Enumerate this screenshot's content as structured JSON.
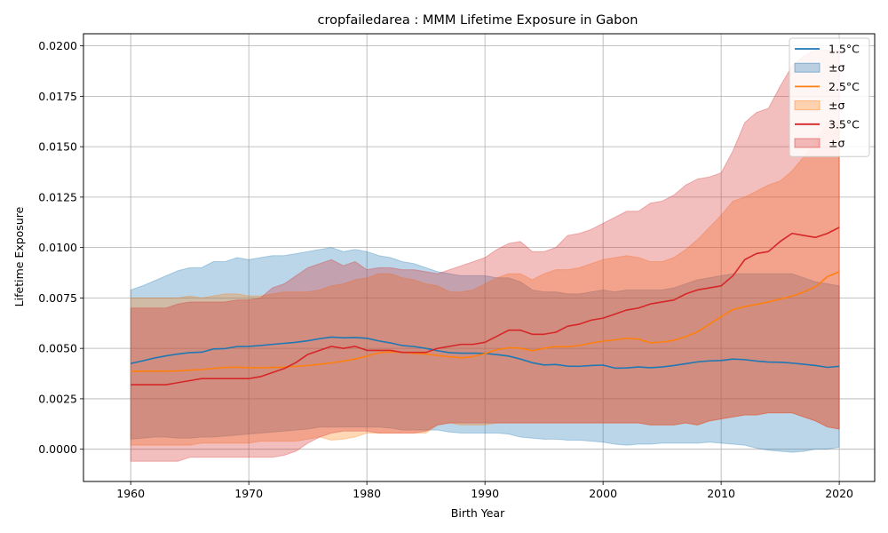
{
  "chart_data": {
    "type": "line",
    "title": "cropfailedarea : MMM Lifetime Exposure in Gabon",
    "xlabel": "Birth Year",
    "ylabel": "Lifetime Exposure",
    "xlim": [
      1956,
      2023
    ],
    "ylim": [
      -0.0016,
      0.0206
    ],
    "x_ticks": [
      1960,
      1970,
      1980,
      1990,
      2000,
      2010,
      2020
    ],
    "x_tick_labels": [
      "1960",
      "1970",
      "1980",
      "1990",
      "2000",
      "2010",
      "2020"
    ],
    "y_ticks": [
      0.0,
      0.0025,
      0.005,
      0.0075,
      0.01,
      0.0125,
      0.015,
      0.0175,
      0.02
    ],
    "y_tick_labels": [
      "0.0000",
      "0.0025",
      "0.0050",
      "0.0075",
      "0.0100",
      "0.0125",
      "0.0150",
      "0.0175",
      "0.0200"
    ],
    "grid": true,
    "legend_position": "top-right",
    "legend_entries": [
      {
        "label": "1.5°C",
        "kind": "line",
        "series": 0
      },
      {
        "label": "±σ",
        "kind": "band",
        "series": 0
      },
      {
        "label": "2.5°C",
        "kind": "line",
        "series": 1
      },
      {
        "label": "±σ",
        "kind": "band",
        "series": 1
      },
      {
        "label": "3.5°C",
        "kind": "line",
        "series": 2
      },
      {
        "label": "±σ",
        "kind": "band",
        "series": 2
      }
    ],
    "x": [
      1960,
      1961,
      1962,
      1963,
      1964,
      1965,
      1966,
      1967,
      1968,
      1969,
      1970,
      1971,
      1972,
      1973,
      1974,
      1975,
      1976,
      1977,
      1978,
      1979,
      1980,
      1981,
      1982,
      1983,
      1984,
      1985,
      1986,
      1987,
      1988,
      1989,
      1990,
      1991,
      1992,
      1993,
      1994,
      1995,
      1996,
      1997,
      1998,
      1999,
      2000,
      2001,
      2002,
      2003,
      2004,
      2005,
      2006,
      2007,
      2008,
      2009,
      2010,
      2011,
      2012,
      2013,
      2014,
      2015,
      2016,
      2017,
      2018,
      2019,
      2020
    ],
    "series": [
      {
        "name": "1.5°C",
        "color": "#1f77b4",
        "values": [
          0.00425,
          0.00438,
          0.00452,
          0.00463,
          0.00472,
          0.00479,
          0.00481,
          0.00497,
          0.00499,
          0.00509,
          0.0051,
          0.00514,
          0.0052,
          0.00525,
          0.0053,
          0.00538,
          0.00548,
          0.00556,
          0.00552,
          0.00554,
          0.0055,
          0.00537,
          0.00527,
          0.00514,
          0.00509,
          0.005,
          0.00488,
          0.00479,
          0.00476,
          0.00476,
          0.00475,
          0.00469,
          0.00462,
          0.00447,
          0.00429,
          0.00418,
          0.0042,
          0.00412,
          0.00411,
          0.00415,
          0.00417,
          0.00402,
          0.00403,
          0.00408,
          0.00404,
          0.00408,
          0.00415,
          0.00424,
          0.00433,
          0.00438,
          0.0044,
          0.00447,
          0.00444,
          0.00437,
          0.00432,
          0.00431,
          0.00427,
          0.00421,
          0.00415,
          0.00406,
          0.00411
        ],
        "upper": [
          0.0079,
          0.0081,
          0.00835,
          0.0086,
          0.00885,
          0.009,
          0.009,
          0.0093,
          0.0093,
          0.0095,
          0.0094,
          0.0095,
          0.0096,
          0.0096,
          0.0097,
          0.0098,
          0.0099,
          0.01,
          0.0098,
          0.0099,
          0.0098,
          0.0096,
          0.0095,
          0.0093,
          0.0092,
          0.009,
          0.0088,
          0.0087,
          0.0086,
          0.0086,
          0.0086,
          0.0085,
          0.0085,
          0.0083,
          0.0079,
          0.0078,
          0.0078,
          0.0077,
          0.0077,
          0.0078,
          0.0079,
          0.0078,
          0.0079,
          0.0079,
          0.0079,
          0.0079,
          0.008,
          0.0082,
          0.0084,
          0.0085,
          0.0086,
          0.0087,
          0.0087,
          0.0087,
          0.0087,
          0.0087,
          0.0087,
          0.0085,
          0.0083,
          0.0082,
          0.0081
        ],
        "lower": [
          0.0005,
          0.00055,
          0.0006,
          0.0006,
          0.00055,
          0.00055,
          0.0006,
          0.0006,
          0.00065,
          0.0007,
          0.00075,
          0.0008,
          0.00085,
          0.0009,
          0.00095,
          0.001,
          0.0011,
          0.0011,
          0.0011,
          0.0011,
          0.0011,
          0.0011,
          0.00105,
          0.00095,
          0.00095,
          0.00095,
          0.00095,
          0.00085,
          0.0008,
          0.0008,
          0.0008,
          0.0008,
          0.00075,
          0.0006,
          0.00055,
          0.0005,
          0.0005,
          0.00045,
          0.00045,
          0.0004,
          0.00035,
          0.00025,
          0.0002,
          0.00025,
          0.00025,
          0.0003,
          0.0003,
          0.0003,
          0.0003,
          0.00035,
          0.0003,
          0.00025,
          0.0002,
          5e-05,
          -5e-05,
          -0.0001,
          -0.00015,
          -0.0001,
          0.0,
          0.0,
          0.0001
        ]
      },
      {
        "name": "2.5°C",
        "color": "#ff7f0e",
        "values": [
          0.00386,
          0.00387,
          0.00387,
          0.00387,
          0.00388,
          0.00392,
          0.00395,
          0.00401,
          0.00405,
          0.00407,
          0.00404,
          0.00404,
          0.00405,
          0.00407,
          0.00411,
          0.00415,
          0.00421,
          0.00428,
          0.00437,
          0.00447,
          0.00461,
          0.00478,
          0.00483,
          0.0048,
          0.00475,
          0.00472,
          0.00465,
          0.00458,
          0.00453,
          0.00459,
          0.00474,
          0.00493,
          0.00503,
          0.00501,
          0.00488,
          0.00501,
          0.00509,
          0.00508,
          0.00515,
          0.00526,
          0.00536,
          0.00542,
          0.0055,
          0.00546,
          0.00528,
          0.00531,
          0.0054,
          0.00558,
          0.00582,
          0.0062,
          0.00657,
          0.00693,
          0.00707,
          0.00718,
          0.0073,
          0.00745,
          0.00759,
          0.0078,
          0.00806,
          0.00856,
          0.0088
        ],
        "upper": [
          0.0075,
          0.0075,
          0.0075,
          0.0075,
          0.0075,
          0.0076,
          0.0075,
          0.0076,
          0.0077,
          0.0077,
          0.0076,
          0.0076,
          0.0077,
          0.0078,
          0.0078,
          0.0078,
          0.0079,
          0.0081,
          0.0082,
          0.0084,
          0.0085,
          0.0087,
          0.0087,
          0.0085,
          0.0084,
          0.0082,
          0.0081,
          0.0078,
          0.0078,
          0.0079,
          0.0082,
          0.0085,
          0.0087,
          0.0087,
          0.0084,
          0.0087,
          0.0089,
          0.0089,
          0.009,
          0.0092,
          0.0094,
          0.0095,
          0.0096,
          0.0095,
          0.0093,
          0.0093,
          0.0095,
          0.0099,
          0.0104,
          0.011,
          0.0116,
          0.0123,
          0.0125,
          0.0128,
          0.0131,
          0.0133,
          0.0138,
          0.0145,
          0.0152,
          0.0162,
          0.0162
        ],
        "lower": [
          0.0002,
          0.0002,
          0.0002,
          0.0002,
          0.0002,
          0.0002,
          0.0003,
          0.0003,
          0.0003,
          0.0003,
          0.0003,
          0.0004,
          0.0004,
          0.0004,
          0.0004,
          0.0005,
          0.0006,
          0.00045,
          0.0005,
          0.0006,
          0.0008,
          0.0008,
          0.0008,
          0.0008,
          0.0008,
          0.0008,
          0.0012,
          0.0013,
          0.0012,
          0.0012,
          0.0012,
          0.0013,
          0.0013,
          0.0013,
          0.0013,
          0.0013,
          0.0013,
          0.0013,
          0.0013,
          0.0013,
          0.0013,
          0.0013,
          0.0013,
          0.0013,
          0.0012,
          0.0012,
          0.0012,
          0.0013,
          0.0012,
          0.0014,
          0.0015,
          0.0016,
          0.0017,
          0.0017,
          0.0018,
          0.0018,
          0.0018,
          0.0016,
          0.0014,
          0.0011,
          0.001
        ]
      },
      {
        "name": "3.5°C",
        "color": "#d62728",
        "values": [
          0.0032,
          0.0032,
          0.0032,
          0.0032,
          0.0033,
          0.0034,
          0.0035,
          0.0035,
          0.0035,
          0.0035,
          0.0035,
          0.0036,
          0.0038,
          0.004,
          0.0043,
          0.0047,
          0.0049,
          0.0051,
          0.005,
          0.0051,
          0.0049,
          0.0049,
          0.0049,
          0.0048,
          0.0048,
          0.0048,
          0.005,
          0.0051,
          0.0052,
          0.0052,
          0.0053,
          0.0056,
          0.0059,
          0.0059,
          0.0057,
          0.0057,
          0.0058,
          0.0061,
          0.0062,
          0.0064,
          0.0065,
          0.0067,
          0.0069,
          0.007,
          0.0072,
          0.0073,
          0.0074,
          0.0077,
          0.0079,
          0.008,
          0.0081,
          0.0086,
          0.0094,
          0.0097,
          0.0098,
          0.0103,
          0.0107,
          0.0106,
          0.0105,
          0.0107,
          0.011
        ],
        "upper": [
          0.007,
          0.007,
          0.007,
          0.007,
          0.0072,
          0.0073,
          0.0073,
          0.0073,
          0.0073,
          0.0074,
          0.0074,
          0.0075,
          0.008,
          0.0082,
          0.0086,
          0.009,
          0.0092,
          0.0094,
          0.0091,
          0.0093,
          0.0089,
          0.009,
          0.009,
          0.0089,
          0.0089,
          0.0088,
          0.0087,
          0.0089,
          0.0091,
          0.0093,
          0.0095,
          0.0099,
          0.0102,
          0.0103,
          0.0098,
          0.0098,
          0.01,
          0.0106,
          0.0107,
          0.0109,
          0.0112,
          0.0115,
          0.0118,
          0.0118,
          0.0122,
          0.0123,
          0.0126,
          0.0131,
          0.0134,
          0.0135,
          0.0137,
          0.0148,
          0.0162,
          0.0167,
          0.0169,
          0.018,
          0.019,
          0.0195,
          0.0198,
          0.0198,
          0.0198
        ],
        "lower": [
          -0.0006,
          -0.0006,
          -0.0006,
          -0.0006,
          -0.0006,
          -0.0004,
          -0.0004,
          -0.0004,
          -0.0004,
          -0.0004,
          -0.0004,
          -0.0004,
          -0.0004,
          -0.0003,
          -0.0001,
          0.0003,
          0.0006,
          0.0008,
          0.0009,
          0.0009,
          0.0009,
          0.0008,
          0.0008,
          0.0008,
          0.0008,
          0.0009,
          0.0012,
          0.0013,
          0.0013,
          0.0013,
          0.0013,
          0.0013,
          0.0013,
          0.0013,
          0.0013,
          0.0013,
          0.0013,
          0.0013,
          0.0013,
          0.0013,
          0.0013,
          0.0013,
          0.0013,
          0.0013,
          0.0012,
          0.0012,
          0.0012,
          0.0013,
          0.0012,
          0.0014,
          0.0015,
          0.0016,
          0.0017,
          0.0017,
          0.0018,
          0.0018,
          0.0018,
          0.0016,
          0.0014,
          0.0011,
          0.001
        ]
      }
    ]
  }
}
